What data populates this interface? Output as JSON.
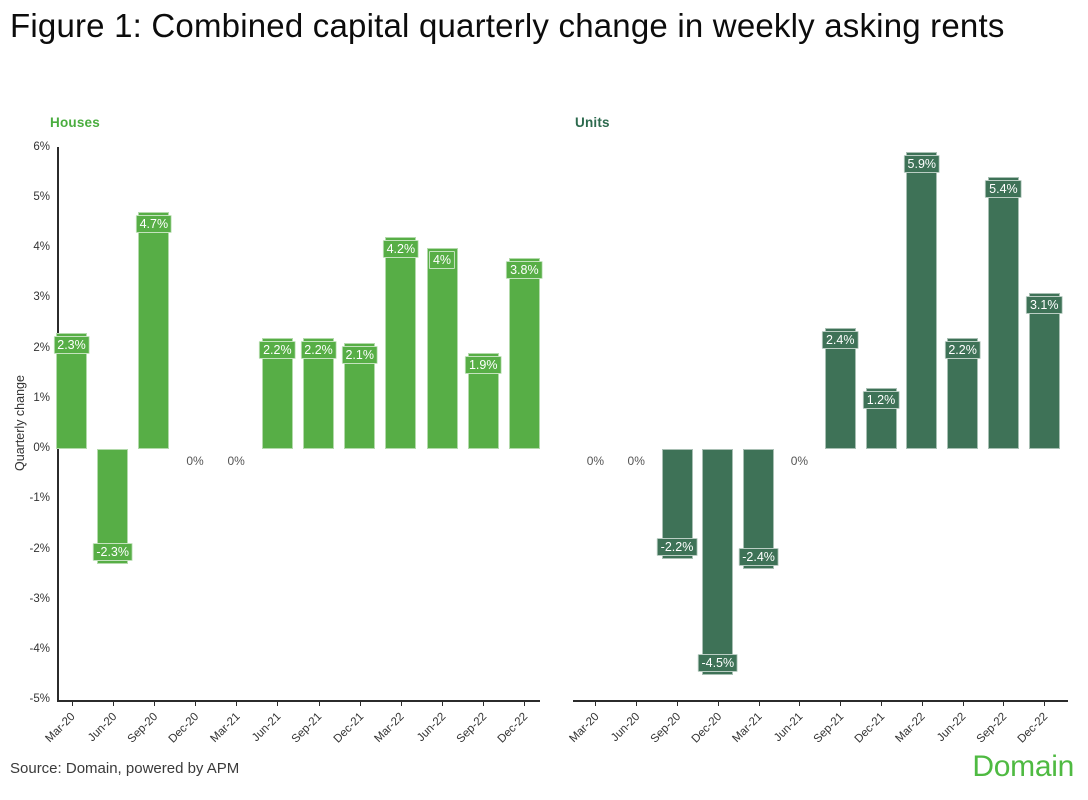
{
  "page": {
    "title": "Figure 1: Combined capital quarterly change in weekly asking rents",
    "source": "Source: Domain, powered by APM",
    "logo": "Domain"
  },
  "colors": {
    "houses_green": "#57ae46",
    "houses_title_green": "#4aad3f",
    "units_green": "#3e7257",
    "units_title_green": "#2d6a4e",
    "logo_green": "#4fba42",
    "axis": "#2b2b2b",
    "axis_text": "#333333",
    "zero_label_text": "#555555"
  },
  "chart_data": [
    {
      "type": "bar",
      "title": "Houses",
      "categories": [
        "Mar-20",
        "Jun-20",
        "Sep-20",
        "Dec-20",
        "Mar-21",
        "Jun-21",
        "Sep-21",
        "Dec-21",
        "Mar-22",
        "Jun-22",
        "Sep-22",
        "Dec-22"
      ],
      "values": [
        2.3,
        -2.3,
        4.7,
        0,
        0,
        2.2,
        2.2,
        2.1,
        4.2,
        4,
        1.9,
        3.8
      ],
      "labels": [
        "2.3%",
        "-2.3%",
        "4.7%",
        "0%",
        "0%",
        "2.2%",
        "2.2%",
        "2.1%",
        "4.2%",
        "4%",
        "1.9%",
        "3.8%"
      ],
      "xlabel": "",
      "ylabel": "Quarterly change",
      "ylim": [
        -5,
        6
      ],
      "y_ticks": [
        "6%",
        "5%",
        "4%",
        "3%",
        "2%",
        "1%",
        "0%",
        "-1%",
        "-2%",
        "-3%",
        "-4%",
        "-5%"
      ],
      "bar_color": "#57ae46",
      "title_color": "#4aad3f",
      "grid": false,
      "legend_position": "none",
      "has_y_axis": true
    },
    {
      "type": "bar",
      "title": "Units",
      "categories": [
        "Mar-20",
        "Jun-20",
        "Sep-20",
        "Dec-20",
        "Mar-21",
        "Jun-21",
        "Sep-21",
        "Dec-21",
        "Mar-22",
        "Jun-22",
        "Sep-22",
        "Dec-22"
      ],
      "values": [
        0,
        0,
        -2.2,
        -4.5,
        -2.4,
        0,
        2.4,
        1.2,
        5.9,
        2.2,
        5.4,
        3.1
      ],
      "labels": [
        "0%",
        "0%",
        "-2.2%",
        "-4.5%",
        "-2.4%",
        "0%",
        "2.4%",
        "1.2%",
        "5.9%",
        "2.2%",
        "5.4%",
        "3.1%"
      ],
      "xlabel": "",
      "ylabel": "",
      "ylim": [
        -5,
        6
      ],
      "y_ticks": [],
      "bar_color": "#3e7257",
      "title_color": "#2d6a4e",
      "grid": false,
      "legend_position": "none",
      "has_y_axis": false
    }
  ]
}
